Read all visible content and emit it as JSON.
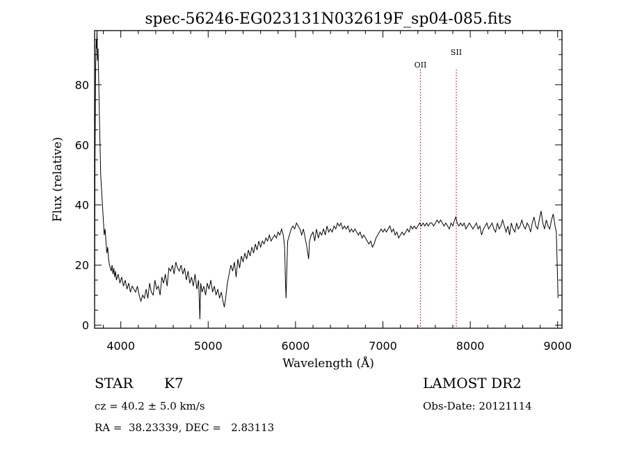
{
  "chart_data": {
    "type": "line",
    "title": "spec-56246-EG023131N032619F_sp04-085.fits",
    "xlabel": "Wavelength (Å)",
    "ylabel": "Flux (relative)",
    "xlim": [
      3700,
      9050
    ],
    "ylim": [
      -1,
      98
    ],
    "x_ticks": [
      4000,
      5000,
      6000,
      7000,
      8000,
      9000
    ],
    "y_ticks": [
      0,
      20,
      40,
      60,
      80
    ],
    "grid": false,
    "series": [
      {
        "color": "#000000",
        "points": [
          [
            3700,
            5
          ],
          [
            3705,
            55
          ],
          [
            3712,
            85
          ],
          [
            3718,
            95
          ],
          [
            3722,
            92
          ],
          [
            3728,
            98
          ],
          [
            3733,
            88
          ],
          [
            3740,
            92
          ],
          [
            3748,
            80
          ],
          [
            3755,
            70
          ],
          [
            3762,
            60
          ],
          [
            3770,
            50
          ],
          [
            3780,
            45
          ],
          [
            3790,
            40
          ],
          [
            3800,
            35
          ],
          [
            3810,
            30
          ],
          [
            3820,
            32
          ],
          [
            3830,
            28
          ],
          [
            3840,
            24
          ],
          [
            3850,
            26
          ],
          [
            3860,
            22
          ],
          [
            3870,
            20
          ],
          [
            3880,
            19
          ],
          [
            3890,
            18
          ],
          [
            3900,
            20
          ],
          [
            3910,
            17
          ],
          [
            3920,
            19
          ],
          [
            3930,
            16
          ],
          [
            3940,
            18
          ],
          [
            3950,
            15
          ],
          [
            3970,
            17
          ],
          [
            3990,
            14
          ],
          [
            4010,
            16
          ],
          [
            4030,
            13
          ],
          [
            4050,
            15
          ],
          [
            4070,
            12
          ],
          [
            4090,
            14
          ],
          [
            4110,
            11
          ],
          [
            4130,
            13
          ],
          [
            4150,
            12
          ],
          [
            4170,
            11
          ],
          [
            4190,
            13
          ],
          [
            4210,
            10
          ],
          [
            4230,
            8
          ],
          [
            4250,
            10
          ],
          [
            4270,
            9
          ],
          [
            4290,
            12
          ],
          [
            4310,
            9
          ],
          [
            4330,
            14
          ],
          [
            4350,
            11
          ],
          [
            4370,
            10
          ],
          [
            4390,
            15
          ],
          [
            4410,
            12
          ],
          [
            4430,
            13
          ],
          [
            4450,
            10
          ],
          [
            4470,
            16
          ],
          [
            4490,
            14
          ],
          [
            4510,
            17
          ],
          [
            4530,
            13
          ],
          [
            4550,
            19
          ],
          [
            4570,
            18
          ],
          [
            4590,
            20
          ],
          [
            4610,
            17
          ],
          [
            4630,
            21
          ],
          [
            4650,
            19
          ],
          [
            4670,
            18
          ],
          [
            4690,
            20
          ],
          [
            4710,
            17
          ],
          [
            4730,
            19
          ],
          [
            4750,
            15
          ],
          [
            4770,
            18
          ],
          [
            4790,
            14
          ],
          [
            4810,
            16
          ],
          [
            4830,
            13
          ],
          [
            4850,
            17
          ],
          [
            4870,
            12
          ],
          [
            4890,
            15
          ],
          [
            4905,
            2
          ],
          [
            4915,
            14
          ],
          [
            4930,
            11
          ],
          [
            4950,
            13
          ],
          [
            4970,
            10
          ],
          [
            4990,
            14
          ],
          [
            5010,
            12
          ],
          [
            5030,
            15
          ],
          [
            5050,
            11
          ],
          [
            5070,
            13
          ],
          [
            5090,
            10
          ],
          [
            5110,
            12
          ],
          [
            5130,
            9
          ],
          [
            5150,
            11
          ],
          [
            5170,
            8
          ],
          [
            5185,
            6
          ],
          [
            5200,
            9
          ],
          [
            5220,
            14
          ],
          [
            5240,
            17
          ],
          [
            5260,
            20
          ],
          [
            5280,
            18
          ],
          [
            5300,
            21
          ],
          [
            5320,
            16
          ],
          [
            5340,
            22
          ],
          [
            5360,
            19
          ],
          [
            5380,
            23
          ],
          [
            5400,
            21
          ],
          [
            5420,
            24
          ],
          [
            5440,
            22
          ],
          [
            5460,
            25
          ],
          [
            5480,
            23
          ],
          [
            5500,
            26
          ],
          [
            5520,
            24
          ],
          [
            5540,
            27
          ],
          [
            5560,
            25
          ],
          [
            5580,
            28
          ],
          [
            5600,
            26
          ],
          [
            5620,
            28
          ],
          [
            5640,
            27
          ],
          [
            5660,
            29
          ],
          [
            5680,
            28
          ],
          [
            5700,
            30
          ],
          [
            5720,
            28
          ],
          [
            5740,
            29
          ],
          [
            5760,
            30
          ],
          [
            5780,
            29
          ],
          [
            5800,
            31
          ],
          [
            5820,
            30
          ],
          [
            5840,
            32
          ],
          [
            5860,
            30
          ],
          [
            5875,
            26
          ],
          [
            5885,
            14
          ],
          [
            5892,
            9
          ],
          [
            5900,
            18
          ],
          [
            5910,
            28
          ],
          [
            5930,
            30
          ],
          [
            5950,
            32
          ],
          [
            5970,
            33
          ],
          [
            5990,
            32
          ],
          [
            6010,
            34
          ],
          [
            6030,
            33
          ],
          [
            6050,
            32
          ],
          [
            6070,
            30
          ],
          [
            6090,
            32
          ],
          [
            6110,
            29
          ],
          [
            6130,
            26
          ],
          [
            6150,
            22
          ],
          [
            6160,
            28
          ],
          [
            6180,
            30
          ],
          [
            6200,
            31
          ],
          [
            6220,
            28
          ],
          [
            6240,
            32
          ],
          [
            6260,
            29
          ],
          [
            6280,
            31
          ],
          [
            6300,
            30
          ],
          [
            6320,
            32
          ],
          [
            6340,
            30
          ],
          [
            6360,
            33
          ],
          [
            6380,
            31
          ],
          [
            6400,
            32
          ],
          [
            6420,
            31
          ],
          [
            6440,
            33
          ],
          [
            6460,
            32
          ],
          [
            6480,
            34
          ],
          [
            6500,
            33
          ],
          [
            6520,
            34
          ],
          [
            6540,
            32
          ],
          [
            6560,
            33
          ],
          [
            6580,
            32
          ],
          [
            6600,
            33
          ],
          [
            6620,
            31
          ],
          [
            6640,
            32
          ],
          [
            6660,
            31
          ],
          [
            6680,
            32
          ],
          [
            6700,
            31
          ],
          [
            6720,
            30
          ],
          [
            6740,
            31
          ],
          [
            6760,
            29
          ],
          [
            6780,
            30
          ],
          [
            6800,
            29
          ],
          [
            6820,
            28
          ],
          [
            6840,
            27
          ],
          [
            6860,
            28
          ],
          [
            6880,
            26
          ],
          [
            6900,
            27
          ],
          [
            6920,
            29
          ],
          [
            6940,
            30
          ],
          [
            6960,
            31
          ],
          [
            6980,
            32
          ],
          [
            7000,
            31
          ],
          [
            7020,
            32
          ],
          [
            7040,
            31
          ],
          [
            7060,
            32
          ],
          [
            7080,
            33
          ],
          [
            7100,
            31
          ],
          [
            7120,
            32
          ],
          [
            7140,
            30
          ],
          [
            7160,
            31
          ],
          [
            7180,
            29
          ],
          [
            7200,
            30
          ],
          [
            7220,
            31
          ],
          [
            7240,
            30
          ],
          [
            7260,
            31
          ],
          [
            7280,
            32
          ],
          [
            7300,
            31
          ],
          [
            7320,
            33
          ],
          [
            7340,
            32
          ],
          [
            7360,
            33
          ],
          [
            7380,
            32
          ],
          [
            7400,
            33
          ],
          [
            7420,
            34
          ],
          [
            7440,
            33
          ],
          [
            7460,
            34
          ],
          [
            7480,
            33
          ],
          [
            7500,
            34
          ],
          [
            7520,
            33
          ],
          [
            7540,
            34
          ],
          [
            7560,
            34
          ],
          [
            7580,
            33
          ],
          [
            7600,
            34
          ],
          [
            7620,
            35
          ],
          [
            7640,
            34
          ],
          [
            7660,
            35
          ],
          [
            7680,
            34
          ],
          [
            7700,
            33
          ],
          [
            7720,
            34
          ],
          [
            7740,
            33
          ],
          [
            7760,
            32
          ],
          [
            7780,
            34
          ],
          [
            7800,
            33
          ],
          [
            7820,
            35
          ],
          [
            7835,
            36
          ],
          [
            7850,
            34
          ],
          [
            7870,
            33
          ],
          [
            7890,
            34
          ],
          [
            7910,
            33
          ],
          [
            7930,
            34
          ],
          [
            7950,
            32
          ],
          [
            7970,
            33
          ],
          [
            7990,
            34
          ],
          [
            8010,
            33
          ],
          [
            8030,
            32
          ],
          [
            8050,
            33
          ],
          [
            8070,
            34
          ],
          [
            8090,
            32
          ],
          [
            8110,
            33
          ],
          [
            8130,
            30
          ],
          [
            8150,
            32
          ],
          [
            8170,
            33
          ],
          [
            8190,
            34
          ],
          [
            8210,
            32
          ],
          [
            8230,
            33
          ],
          [
            8250,
            34
          ],
          [
            8270,
            32
          ],
          [
            8290,
            31
          ],
          [
            8310,
            34
          ],
          [
            8330,
            32
          ],
          [
            8350,
            33
          ],
          [
            8370,
            35
          ],
          [
            8390,
            33
          ],
          [
            8410,
            31
          ],
          [
            8430,
            33
          ],
          [
            8450,
            30
          ],
          [
            8470,
            34
          ],
          [
            8490,
            32
          ],
          [
            8510,
            31
          ],
          [
            8530,
            34
          ],
          [
            8550,
            32
          ],
          [
            8570,
            33
          ],
          [
            8590,
            35
          ],
          [
            8610,
            33
          ],
          [
            8630,
            32
          ],
          [
            8650,
            34
          ],
          [
            8670,
            33
          ],
          [
            8690,
            31
          ],
          [
            8710,
            34
          ],
          [
            8730,
            36
          ],
          [
            8750,
            33
          ],
          [
            8770,
            32
          ],
          [
            8790,
            35
          ],
          [
            8810,
            38
          ],
          [
            8830,
            34
          ],
          [
            8850,
            32
          ],
          [
            8870,
            35
          ],
          [
            8890,
            33
          ],
          [
            8910,
            32
          ],
          [
            8930,
            35
          ],
          [
            8950,
            37
          ],
          [
            8970,
            33
          ],
          [
            8985,
            31
          ],
          [
            8995,
            20
          ],
          [
            9000,
            15
          ],
          [
            9005,
            9
          ]
        ]
      }
    ],
    "lines": [
      {
        "label": "OII",
        "x": 7430,
        "color": "#e0000f"
      },
      {
        "label": "SII",
        "x": 7840,
        "color": "#e0000f"
      }
    ]
  },
  "info": {
    "class_label": "STAR",
    "subclass_label": "K7",
    "survey": "LAMOST DR2",
    "cz": "cz = 40.2 ± 5.0 km/s",
    "obs_date": "Obs-Date: 20121114",
    "coords": "RA =  38.23339, DEC =   2.83113"
  }
}
